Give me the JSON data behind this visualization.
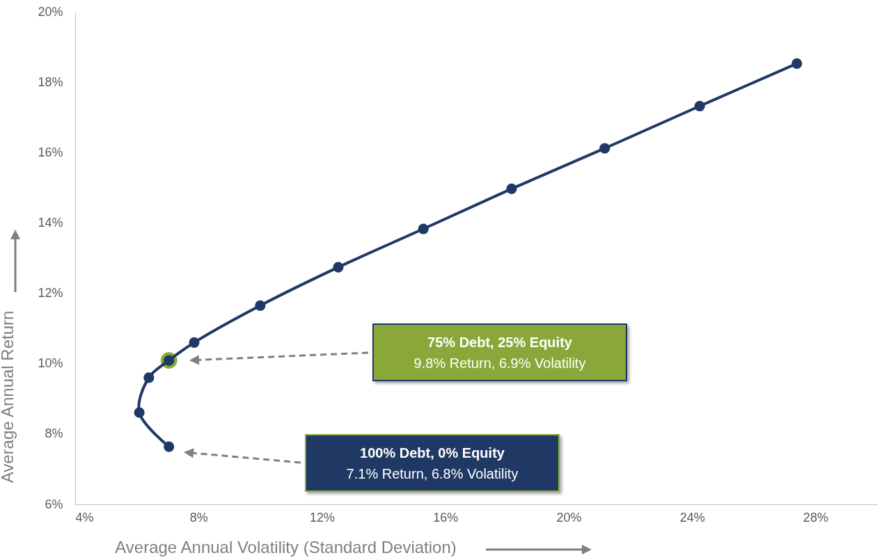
{
  "chart_data": {
    "type": "line",
    "xlabel": "Average Annual Volatility (Standard Deviation)",
    "ylabel": "Average Annual Return",
    "xlim": [
      4,
      30
    ],
    "ylim": [
      6,
      20
    ],
    "xticks": [
      {
        "value": 4,
        "label": "4%"
      },
      {
        "value": 8,
        "label": "8%"
      },
      {
        "value": 12,
        "label": "12%"
      },
      {
        "value": 16,
        "label": "16%"
      },
      {
        "value": 20,
        "label": "20%"
      },
      {
        "value": 24,
        "label": "24%"
      },
      {
        "value": 28,
        "label": "28%"
      }
    ],
    "yticks": [
      {
        "value": 6,
        "label": "6%"
      },
      {
        "value": 8,
        "label": "8%"
      },
      {
        "value": 10,
        "label": "10%"
      },
      {
        "value": 12,
        "label": "12%"
      },
      {
        "value": 14,
        "label": "14%"
      },
      {
        "value": 16,
        "label": "16%"
      },
      {
        "value": 18,
        "label": "18%"
      },
      {
        "value": 20,
        "label": "20%"
      }
    ],
    "marker": "circle",
    "line_style": "solid",
    "series": [
      {
        "color": "#1f3864",
        "x": [
          7.04,
          6.08,
          6.39,
          7.04,
          7.86,
          10.0,
          12.53,
          15.29,
          18.15,
          21.17,
          24.25,
          27.4
        ],
        "values": [
          7.64,
          8.61,
          9.6,
          10.09,
          10.6,
          11.65,
          12.74,
          13.83,
          14.97,
          16.12,
          17.32,
          18.53
        ]
      },
      {
        "type": "scatter",
        "color": "#8aa83a",
        "x": [
          7.04
        ],
        "values": [
          10.09
        ]
      }
    ],
    "annotations": [
      "75% Debt, 25% Equity",
      "9.8% Return, 6.9% Volatility",
      "100% Debt, 0% Equity",
      "7.1% Return, 6.8% Volatility"
    ]
  }
}
